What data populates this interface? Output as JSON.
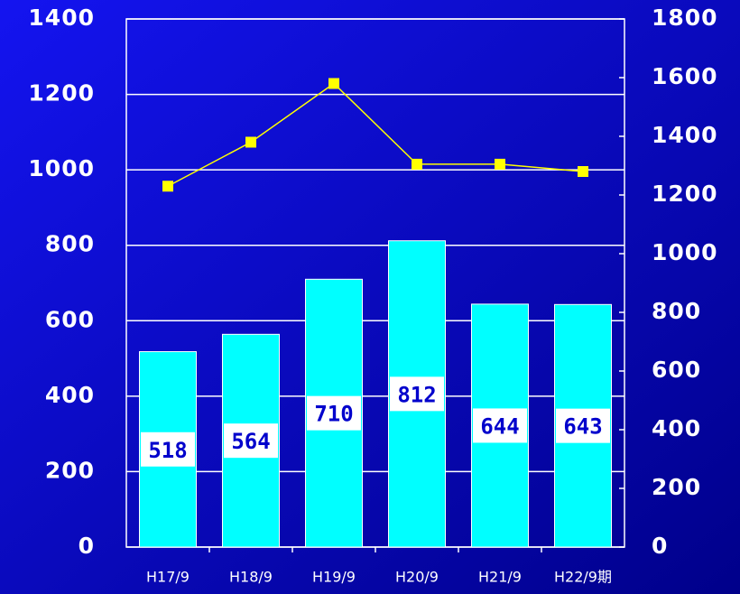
{
  "chart_data": {
    "type": "bar",
    "categories": [
      "H17/9",
      "H18/9",
      "H19/9",
      "H20/9",
      "H21/9",
      "H22/9期"
    ],
    "series": [
      {
        "type": "bar",
        "color": "#00ffff",
        "values": [
          518,
          564,
          710,
          812,
          644,
          643
        ]
      },
      {
        "type": "line",
        "color": "#ffff00",
        "axis": "y2",
        "values": [
          1230,
          1380,
          1580,
          1305,
          1305,
          1280
        ]
      }
    ],
    "ylim": [
      0,
      1400
    ],
    "yticks": [
      0,
      200,
      400,
      600,
      800,
      1000,
      1200,
      1400
    ],
    "y2lim": [
      0,
      1800
    ],
    "y2ticks": [
      0,
      200,
      400,
      600,
      800,
      1000,
      1200,
      1400,
      1600,
      1800
    ],
    "grid": true
  }
}
